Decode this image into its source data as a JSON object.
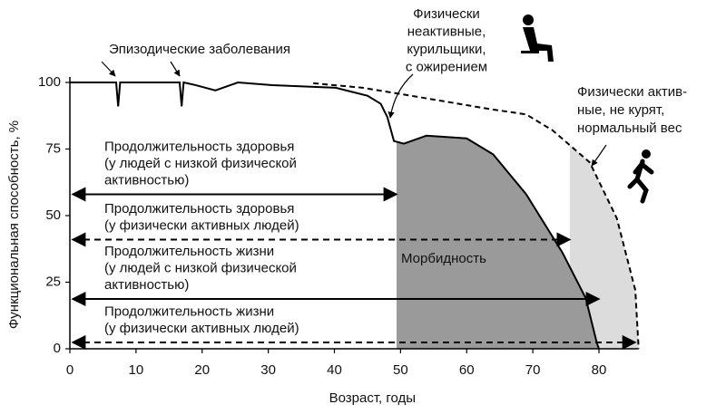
{
  "chart_data": {
    "type": "line",
    "x_label": "Возраст, годы",
    "y_label": "Функциональная способность, %",
    "xlim": [
      0,
      86
    ],
    "ylim": [
      0,
      100
    ],
    "xticks": [
      0,
      10,
      20,
      30,
      40,
      50,
      60,
      70,
      80
    ],
    "yticks": [
      0,
      25,
      50,
      75,
      100
    ],
    "series": [
      {
        "label": [
          "Физически",
          "неактивные,",
          "курильщики,",
          "с ожирением"
        ],
        "color": "#000000",
        "dashed": false,
        "x": [
          0,
          7,
          7.3,
          7.6,
          16.6,
          16.9,
          17.2,
          19,
          22,
          25.4,
          30.6,
          40.2,
          45,
          47,
          48,
          49,
          50.5,
          53.9,
          60,
          64,
          69,
          74.5,
          78,
          79.7,
          80
        ],
        "values": [
          100,
          100,
          91,
          100,
          100,
          91,
          100,
          99,
          97,
          100,
          99,
          98,
          95,
          92,
          87,
          78,
          77,
          80,
          79,
          73,
          58,
          36,
          19,
          2,
          0
        ],
        "shade_from": 49.4,
        "shade_color": "#9a9a9a",
        "shade_label": "Морбидность"
      },
      {
        "label": [
          "Физически актив-",
          "ные, не курят,",
          "нормальный вес"
        ],
        "color": "#000000",
        "dashed": true,
        "x": [
          36.8,
          44.3,
          54,
          63.5,
          69,
          73,
          78.6,
          82.7,
          85.5,
          86
        ],
        "values": [
          99.7,
          98,
          94,
          90,
          88,
          82,
          70,
          49,
          22,
          0
        ],
        "shade_from": 75.6,
        "shade_color": "#dcdcdc"
      }
    ],
    "spans": [
      {
        "lines": [
          "Продолжительность здоровья",
          "(у людей с низкой физической",
          "активностью)"
        ],
        "y": 58,
        "x_end": 49.4,
        "dashed": false
      },
      {
        "lines": [
          "Продолжительность здоровья",
          "(у физически активных людей)"
        ],
        "y": 41,
        "x_end": 75.6,
        "dashed": true
      },
      {
        "lines": [
          "Продолжительность жизни",
          "(у людей с низкой физической",
          "активностью)"
        ],
        "y": 18.7,
        "x_end": 80,
        "dashed": false
      },
      {
        "lines": [
          "Продолжительность жизни",
          "(у физически активных людей)"
        ],
        "y": 2.4,
        "x_end": 85.5,
        "dashed": true
      }
    ],
    "annotation": "Эпизодические заболевания"
  }
}
